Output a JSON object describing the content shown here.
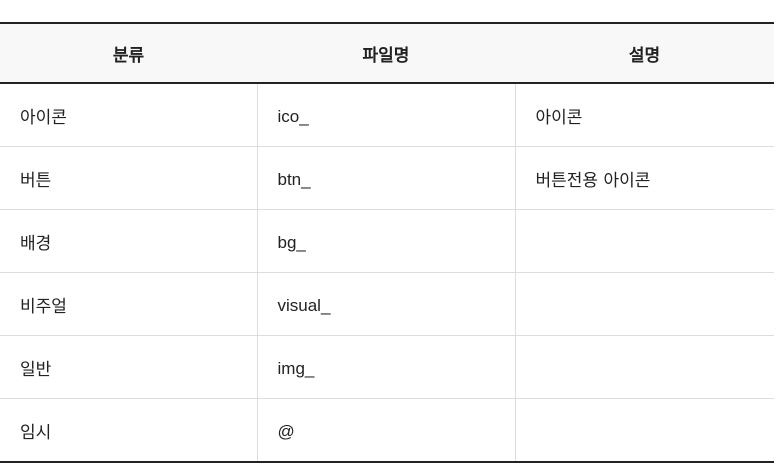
{
  "table": {
    "headers": [
      "분류",
      "파일명",
      "설명"
    ],
    "rows": [
      {
        "category": "아이콘",
        "filename": "ico_",
        "description": "아이콘"
      },
      {
        "category": "버튼",
        "filename": "btn_",
        "description": "버튼전용 아이콘"
      },
      {
        "category": "배경",
        "filename": "bg_",
        "description": ""
      },
      {
        "category": "비주얼",
        "filename": "visual_",
        "description": ""
      },
      {
        "category": "일반",
        "filename": "img_",
        "description": ""
      },
      {
        "category": "임시",
        "filename": "@",
        "description": ""
      }
    ]
  }
}
